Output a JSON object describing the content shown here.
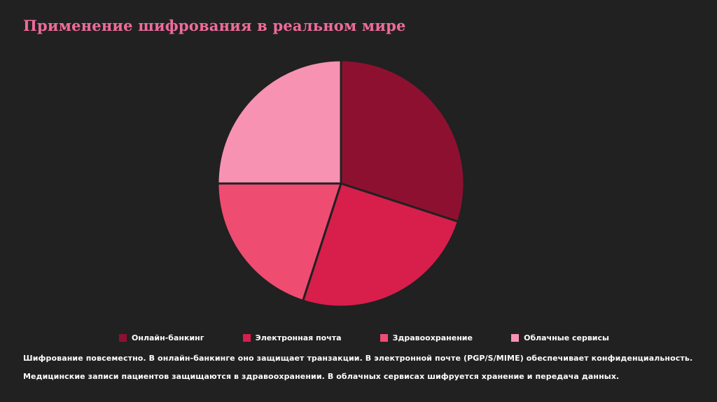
{
  "page": {
    "background": "#212121",
    "title": "Применение шифрования в реальном мире",
    "title_color": "#ee6b9a"
  },
  "chart_data": {
    "type": "pie",
    "title": "Применение шифрования в реальном мире",
    "start_angle_deg": 0,
    "direction": "clockwise",
    "legend_position": "bottom",
    "slices": [
      {
        "label": "Онлайн-банкинг",
        "value": 30,
        "color": "#8e1030"
      },
      {
        "label": "Электронная почта",
        "value": 25,
        "color": "#d81e4b"
      },
      {
        "label": "Здравоохранение",
        "value": 20,
        "color": "#ef4c72"
      },
      {
        "label": "Облачные сервисы",
        "value": 25,
        "color": "#f792b3"
      }
    ]
  },
  "captions": {
    "line1": "Шифрование повсеместно. В онлайн-банкинге оно защищает транзакции. В электронной почте (PGP/S/MIME) обеспечивает конфиденциальность.",
    "line2": "Медицинские записи пациентов защищаются в здравоохранении. В облачных сервисах шифруется хранение и передача данных."
  }
}
